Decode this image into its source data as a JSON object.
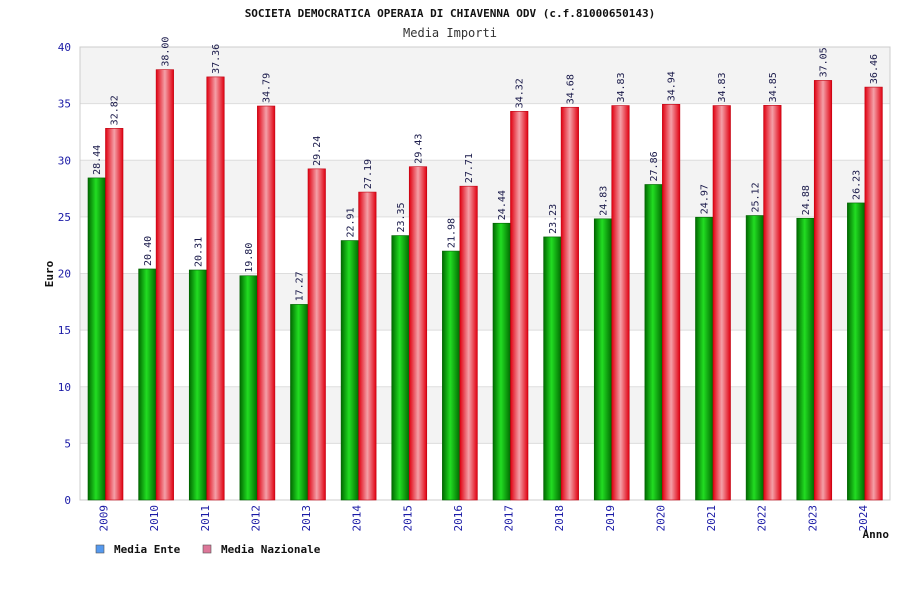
{
  "chart_data": {
    "type": "bar",
    "title": "SOCIETA DEMOCRATICA OPERAIA DI CHIAVENNA ODV (c.f.81000650143)",
    "subtitle": "Media Importi",
    "ylabel": "Euro",
    "xlabel": "Anno",
    "ylim": [
      0,
      40
    ],
    "yticks": [
      0,
      5,
      10,
      15,
      20,
      25,
      30,
      35,
      40
    ],
    "categories": [
      "2009",
      "2010",
      "2011",
      "2012",
      "2013",
      "2014",
      "2015",
      "2016",
      "2017",
      "2018",
      "2019",
      "2020",
      "2021",
      "2022",
      "2023",
      "2024"
    ],
    "series": [
      {
        "name": "Media Ente",
        "color": "#00b000",
        "legend_color": "#5599ee",
        "values": [
          28.44,
          20.4,
          20.31,
          19.8,
          17.27,
          22.91,
          23.35,
          21.98,
          24.44,
          23.23,
          24.83,
          27.86,
          24.97,
          25.12,
          24.88,
          26.23
        ],
        "labels": [
          "28.44",
          "20.40",
          "20.31",
          "19.80",
          "17.27",
          "22.91",
          "23.35",
          "21.98",
          "24.44",
          "23.23",
          "24.83",
          "27.86",
          "24.97",
          "25.12",
          "24.88",
          "26.23"
        ]
      },
      {
        "name": "Media Nazionale",
        "color": "#ee1122",
        "legend_color": "#dd7799",
        "values": [
          32.82,
          38.0,
          37.36,
          34.79,
          29.24,
          27.19,
          29.43,
          27.71,
          34.32,
          34.68,
          34.83,
          34.94,
          34.83,
          34.85,
          37.05,
          36.46
        ],
        "labels": [
          "32.82",
          "38.00",
          "37.36",
          "34.79",
          "29.24",
          "27.19",
          "29.43",
          "27.71",
          "34.32",
          "34.68",
          "34.83",
          "34.94",
          "34.83",
          "34.85",
          "37.05",
          "36.46"
        ]
      }
    ],
    "legend_position": "bottom-left",
    "grid": true
  }
}
